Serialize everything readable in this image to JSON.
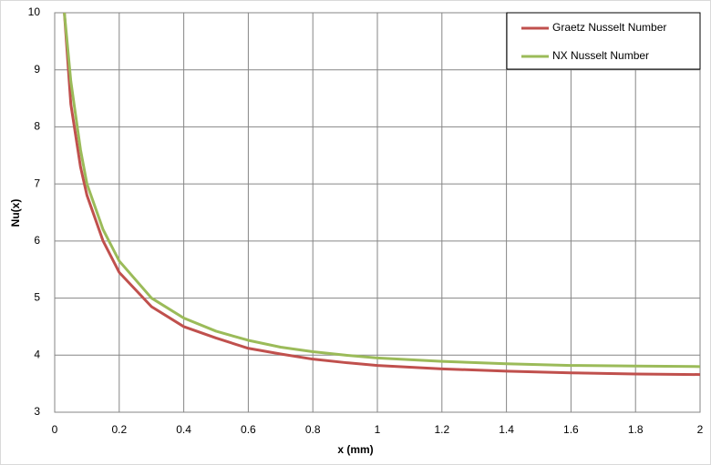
{
  "chart_data": {
    "type": "line",
    "xlabel": "x (mm)",
    "ylabel": "Nu(x)",
    "x": [
      0.03,
      0.05,
      0.08,
      0.1,
      0.15,
      0.2,
      0.3,
      0.4,
      0.5,
      0.6,
      0.7,
      0.8,
      0.9,
      1.0,
      1.2,
      1.4,
      1.6,
      1.8,
      2.0
    ],
    "series": [
      {
        "name": "Graetz Nusselt Number",
        "color": "#c0504d",
        "values": [
          10,
          8.4,
          7.3,
          6.8,
          6.0,
          5.45,
          4.85,
          4.5,
          4.3,
          4.12,
          4.02,
          3.93,
          3.87,
          3.82,
          3.76,
          3.72,
          3.69,
          3.67,
          3.66
        ]
      },
      {
        "name": "NX Nusselt Number",
        "color": "#9bbb59",
        "values": [
          10,
          8.8,
          7.6,
          7.0,
          6.2,
          5.65,
          5.0,
          4.65,
          4.42,
          4.26,
          4.14,
          4.06,
          4.0,
          3.95,
          3.89,
          3.85,
          3.82,
          3.81,
          3.8
        ]
      }
    ],
    "xlim": [
      0,
      2
    ],
    "ylim": [
      3,
      10
    ],
    "xticks": [
      0,
      0.2,
      0.4,
      0.6,
      0.8,
      1,
      1.2,
      1.4,
      1.6,
      1.8,
      2
    ],
    "yticks": [
      3,
      4,
      5,
      6,
      7,
      8,
      9,
      10
    ],
    "grid": true,
    "legend": "top-right"
  }
}
